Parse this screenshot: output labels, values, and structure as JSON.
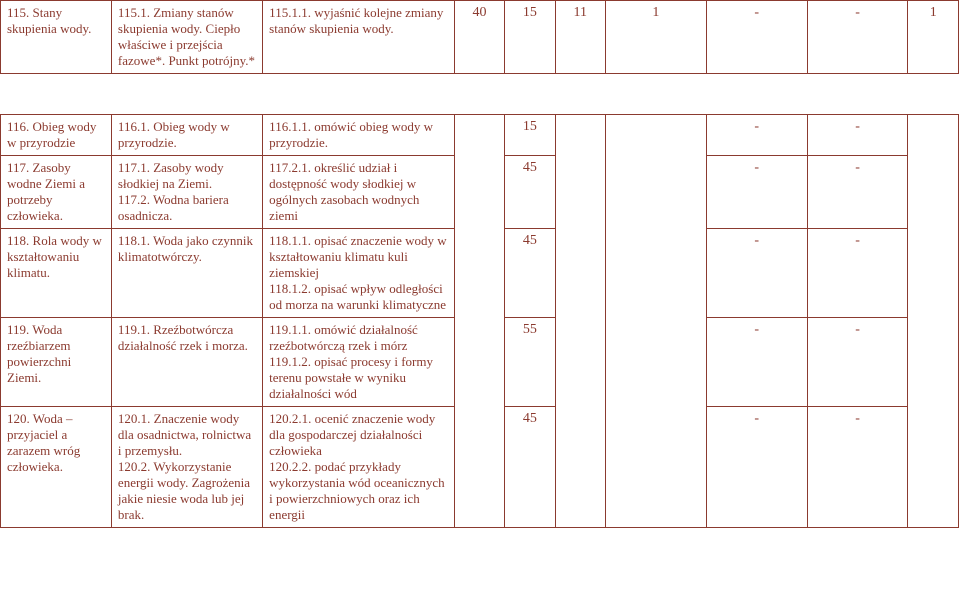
{
  "colors": {
    "text": "#8b3a2f",
    "border": "#8b3a2f",
    "background": "#ffffff"
  },
  "upper": {
    "r115": {
      "col1": "115. Stany skupienia wody.",
      "col2": "115.1. Zmiany stanów skupienia wody. Ciepło właściwe i przejścia fazowe*. Punkt potrójny.*",
      "col3": "115.1.1. wyjaśnić kolejne zmiany stanów skupienia wody.",
      "n1": "40",
      "n2": "15",
      "n3": "11",
      "n4": "1",
      "n5": "-",
      "n6": "-",
      "n7": "1"
    }
  },
  "lower": {
    "r116": {
      "col1": "116. Obieg wody w przyrodzie",
      "col2": "116.1. Obieg wody w przyrodzie.",
      "col3": "116.1.1. omówić obieg wody w przyrodzie.",
      "n1": "",
      "n2": "15",
      "n5": "-",
      "n6": "-"
    },
    "r117": {
      "col1": "117. Zasoby wodne Ziemi a potrzeby człowieka.",
      "col2": "117.1. Zasoby wody słodkiej na Ziemi.\n117.2. Wodna bariera osadnicza.",
      "col3": "117.2.1. określić udział i dostępność wody słodkiej w ogólnych zasobach wodnych ziemi",
      "n2": "45",
      "n5": "-",
      "n6": "-"
    },
    "r118": {
      "col1": "118. Rola wody w kształtowaniu klimatu.",
      "col2": "118.1. Woda jako czynnik klimatotwórczy.",
      "col3": "118.1.1. opisać znaczenie wody w kształtowaniu klimatu kuli ziemskiej\n118.1.2. opisać wpływ odległości od morza na warunki klimatyczne",
      "n2": "45",
      "n5": "-",
      "n6": "-"
    },
    "r119": {
      "col1": "119. Woda rzeźbiarzem powierzchni Ziemi.",
      "col2": "119.1. Rzeźbotwórcza działalność rzek i morza.",
      "col3": "119.1.1. omówić działalność rzeźbotwórczą rzek i mórz\n119.1.2. opisać procesy i formy terenu powstałe w wyniku działalności wód",
      "n2": "55",
      "n5": "-",
      "n6": "-"
    },
    "r120": {
      "col1": "120. Woda – przyjaciel a zarazem wróg człowieka.",
      "col2": "120.1. Znaczenie wody dla osadnictwa, rolnictwa i przemysłu.\n120.2. Wykorzystanie energii wody. Zagrożenia jakie niesie woda lub jej brak.",
      "col3": "120.2.1. ocenić znaczenie wody dla gospodarczej działalności człowieka\n120.2.2. podać przykłady wykorzystania wód oceanicznych i powierzchniowych oraz ich energii",
      "n2": "45",
      "n5": "-",
      "n6": "-"
    }
  }
}
